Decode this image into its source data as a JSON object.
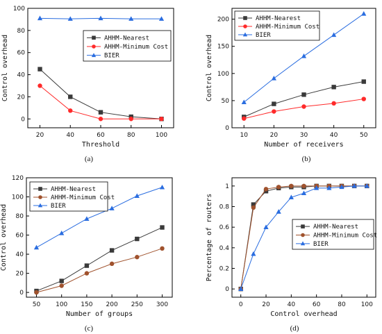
{
  "chart_data": [
    {
      "type": "line",
      "caption": "(a)",
      "xlabel": "Threshold",
      "ylabel": "Control overhead",
      "xlim": [
        12,
        108
      ],
      "ylim": [
        -8,
        100
      ],
      "xticks": [
        20,
        40,
        60,
        80,
        100
      ],
      "yticks": [
        0,
        20,
        40,
        60,
        80,
        100
      ],
      "legend_position": "center-right",
      "series": [
        {
          "name": "AHHM-Nearest",
          "color": "#3a3a3a",
          "marker": "square",
          "x": [
            20,
            40,
            60,
            80,
            100
          ],
          "y": [
            45,
            20,
            6,
            2,
            0
          ]
        },
        {
          "name": "AHHM-Minimum Cost",
          "color": "#ff2a2a",
          "marker": "circle",
          "x": [
            20,
            40,
            60,
            80,
            100
          ],
          "y": [
            30,
            7.5,
            0,
            0,
            0
          ]
        },
        {
          "name": "BIER",
          "color": "#2a6de0",
          "marker": "triangle",
          "x": [
            20,
            40,
            60,
            80,
            100
          ],
          "y": [
            91,
            90.5,
            91,
            90.5,
            90.5
          ]
        }
      ]
    },
    {
      "type": "line",
      "caption": "(b)",
      "xlabel": "Number of receivers",
      "ylabel": "Control overhead",
      "xlim": [
        6,
        54
      ],
      "ylim": [
        0,
        220
      ],
      "xticks": [
        10,
        20,
        30,
        40,
        50
      ],
      "yticks": [
        0,
        50,
        100,
        150,
        200
      ],
      "legend_position": "top-left",
      "series": [
        {
          "name": "AHHM-Nearest",
          "color": "#3a3a3a",
          "marker": "square",
          "x": [
            10,
            20,
            30,
            40,
            50
          ],
          "y": [
            20,
            44,
            61,
            75,
            85
          ]
        },
        {
          "name": "AHHM-Minimum Cost",
          "color": "#ff2a2a",
          "marker": "circle",
          "x": [
            10,
            20,
            30,
            40,
            50
          ],
          "y": [
            17,
            30,
            39,
            45,
            53
          ]
        },
        {
          "name": "BIER",
          "color": "#2a6de0",
          "marker": "triangle",
          "x": [
            10,
            20,
            30,
            40,
            50
          ],
          "y": [
            47,
            91,
            132,
            171,
            210
          ]
        }
      ]
    },
    {
      "type": "line",
      "caption": "(c)",
      "xlabel": "Number of groups",
      "ylabel": "Control overhead",
      "xlim": [
        30,
        320
      ],
      "ylim": [
        -5,
        120
      ],
      "xticks": [
        50,
        100,
        150,
        200,
        250,
        300
      ],
      "yticks": [
        0,
        20,
        40,
        60,
        80,
        100,
        120
      ],
      "legend_position": "top-left",
      "series": [
        {
          "name": "AHHM-Nearest",
          "color": "#3a3a3a",
          "marker": "square",
          "x": [
            50,
            100,
            150,
            200,
            250,
            300
          ],
          "y": [
            1.5,
            12,
            28,
            44,
            56,
            68
          ]
        },
        {
          "name": "AHHM-Minimum Cost",
          "color": "#a0522d",
          "marker": "circle",
          "x": [
            50,
            100,
            150,
            200,
            250,
            300
          ],
          "y": [
            0,
            7,
            20,
            30,
            37,
            46
          ]
        },
        {
          "name": "BIER",
          "color": "#2a6de0",
          "marker": "triangle",
          "x": [
            50,
            100,
            150,
            200,
            250,
            300
          ],
          "y": [
            47,
            62,
            77,
            88,
            101,
            110
          ]
        }
      ]
    },
    {
      "type": "line",
      "caption": "(d)",
      "xlabel": "Control overhead",
      "ylabel": "Percentage of routers",
      "xlim": [
        -7,
        107
      ],
      "ylim": [
        -0.08,
        1.08
      ],
      "xticks": [
        0,
        20,
        40,
        60,
        80,
        100
      ],
      "yticks": [
        0.0,
        0.2,
        0.4,
        0.6,
        0.8,
        1.0
      ],
      "legend_position": "center-right",
      "series": [
        {
          "name": "AHHM-Nearest",
          "color": "#3a3a3a",
          "marker": "square",
          "x": [
            0,
            10,
            20,
            30,
            40,
            50,
            60,
            70,
            80,
            90,
            100
          ],
          "y": [
            0,
            0.82,
            0.95,
            0.98,
            0.99,
            0.99,
            1.0,
            1.0,
            1.0,
            1.0,
            1.0
          ]
        },
        {
          "name": "AHHM-Minimum Cost",
          "color": "#a0522d",
          "marker": "circle",
          "x": [
            0,
            10,
            20,
            30,
            40,
            50,
            60,
            70,
            80,
            90,
            100
          ],
          "y": [
            0,
            0.79,
            0.97,
            0.99,
            1.0,
            1.0,
            1.0,
            1.0,
            1.0,
            1.0,
            1.0
          ]
        },
        {
          "name": "BIER",
          "color": "#2a6de0",
          "marker": "triangle",
          "x": [
            0,
            10,
            20,
            30,
            40,
            50,
            60,
            70,
            80,
            90,
            100
          ],
          "y": [
            0,
            0.34,
            0.6,
            0.75,
            0.89,
            0.93,
            0.98,
            0.98,
            0.99,
            1.0,
            1.0
          ]
        }
      ]
    }
  ]
}
